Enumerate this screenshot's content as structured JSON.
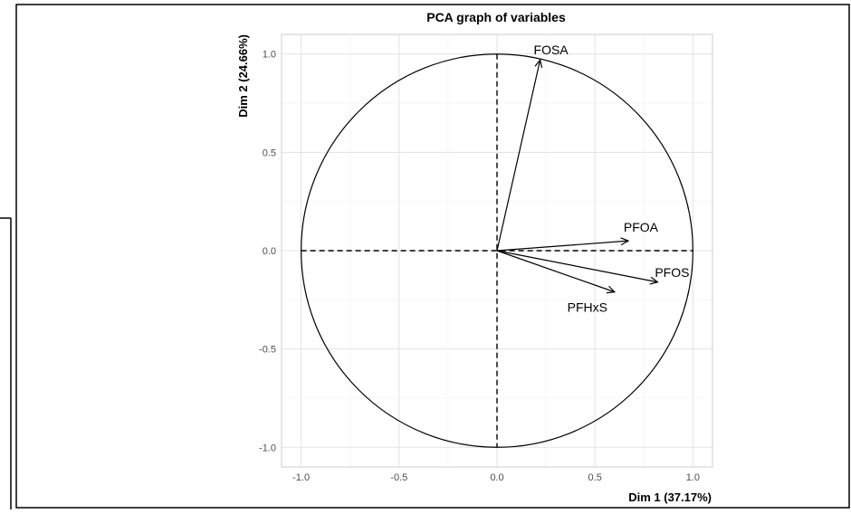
{
  "chart_data": {
    "type": "scatter",
    "title": "PCA graph of variables",
    "xlabel": "Dim 1 (37.17%)",
    "ylabel": "Dim 2 (24.66%)",
    "xlim": [
      -1.1,
      1.1
    ],
    "ylim": [
      -1.1,
      1.1
    ],
    "x_ticks": [
      -1.0,
      -0.5,
      0.0,
      0.5,
      1.0
    ],
    "y_ticks": [
      -1.0,
      -0.5,
      0.0,
      0.5,
      1.0
    ],
    "x_tick_labels": [
      "-1.0",
      "-0.5",
      "0.0",
      "0.5",
      "1.0"
    ],
    "y_tick_labels": [
      "-1.0",
      "-0.5",
      "0.0",
      "0.5",
      "1.0"
    ],
    "grid": true,
    "circle_radius": 1.0,
    "variables": [
      {
        "name": "FOSA",
        "x": 0.22,
        "y": 0.97
      },
      {
        "name": "PFOA",
        "x": 0.67,
        "y": 0.05
      },
      {
        "name": "PFOS",
        "x": 0.82,
        "y": -0.16
      },
      {
        "name": "PFHxS",
        "x": 0.6,
        "y": -0.21
      }
    ]
  }
}
